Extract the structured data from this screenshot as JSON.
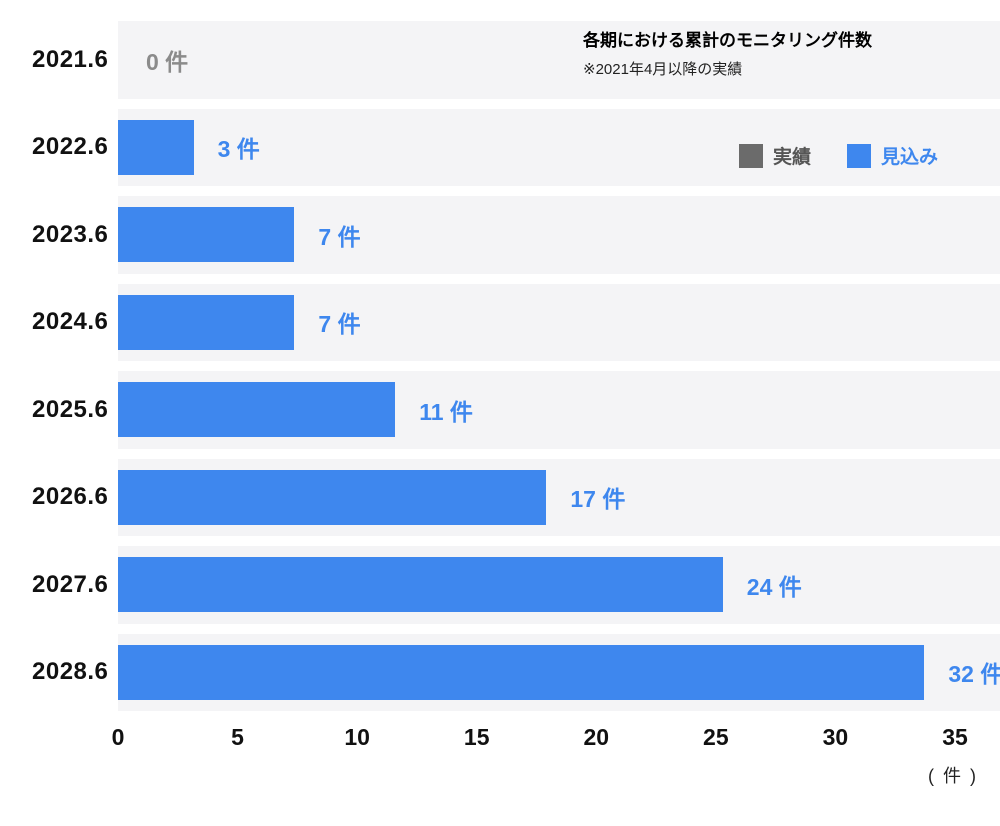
{
  "chart_data": {
    "type": "bar",
    "orientation": "horizontal",
    "title": "各期における累計のモニタリング件数",
    "note": "※2021年4月以降の実績",
    "categories": [
      "2021.6",
      "2022.6",
      "2023.6",
      "2024.6",
      "2025.6",
      "2026.6",
      "2027.6",
      "2028.6"
    ],
    "values": [
      0,
      3,
      7,
      7,
      11,
      17,
      24,
      32
    ],
    "value_suffix": "件",
    "xlim": [
      0,
      35
    ],
    "xticks": [
      0,
      5,
      10,
      15,
      20,
      25,
      30,
      35
    ],
    "unit": "( 件 )",
    "legend": [
      {
        "label": "実績",
        "color": "#6b6b6b"
      },
      {
        "label": "見込み",
        "color": "#3e87ee"
      }
    ],
    "colors": {
      "bar": "#3e87ee",
      "row_band": "#f4f4f6",
      "zero_label": "#8b8b8b"
    },
    "grid": false,
    "legend_position": "top-right"
  }
}
